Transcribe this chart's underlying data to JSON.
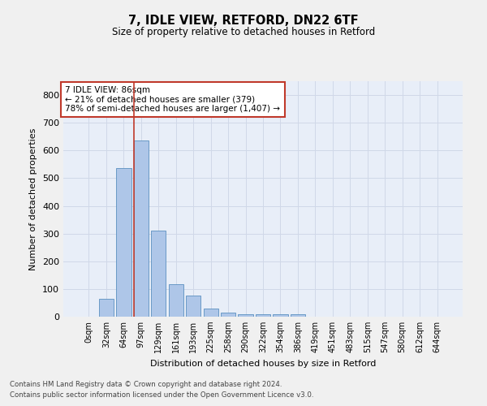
{
  "title1": "7, IDLE VIEW, RETFORD, DN22 6TF",
  "title2": "Size of property relative to detached houses in Retford",
  "xlabel": "Distribution of detached houses by size in Retford",
  "ylabel": "Number of detached properties",
  "bar_labels": [
    "0sqm",
    "32sqm",
    "64sqm",
    "97sqm",
    "129sqm",
    "161sqm",
    "193sqm",
    "225sqm",
    "258sqm",
    "290sqm",
    "322sqm",
    "354sqm",
    "386sqm",
    "419sqm",
    "451sqm",
    "483sqm",
    "515sqm",
    "547sqm",
    "580sqm",
    "612sqm",
    "644sqm"
  ],
  "bar_values": [
    0,
    65,
    535,
    635,
    310,
    118,
    76,
    30,
    16,
    10,
    10,
    10,
    8,
    0,
    0,
    0,
    0,
    0,
    0,
    0,
    0
  ],
  "bar_color": "#aec6e8",
  "bar_edge_color": "#5a8fc0",
  "grid_color": "#d0d8e8",
  "background_color": "#e8eef8",
  "fig_background": "#f0f0f0",
  "vline_color": "#c0392b",
  "annotation_text": "7 IDLE VIEW: 86sqm\n← 21% of detached houses are smaller (379)\n78% of semi-detached houses are larger (1,407) →",
  "annotation_box_color": "#ffffff",
  "annotation_edge_color": "#c0392b",
  "footnote_line1": "Contains HM Land Registry data © Crown copyright and database right 2024.",
  "footnote_line2": "Contains public sector information licensed under the Open Government Licence v3.0.",
  "ylim": [
    0,
    850
  ],
  "yticks": [
    0,
    100,
    200,
    300,
    400,
    500,
    600,
    700,
    800
  ]
}
